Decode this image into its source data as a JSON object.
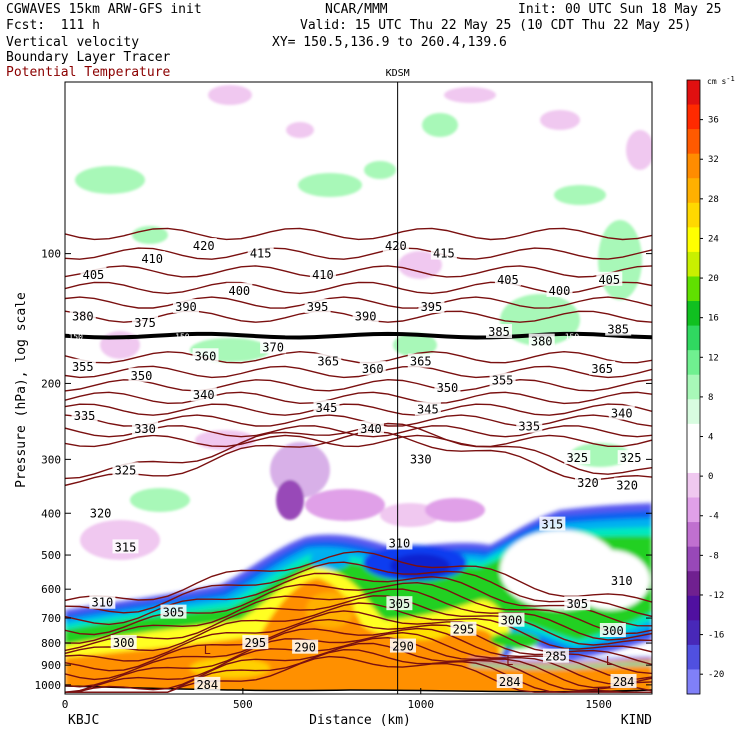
{
  "header": {
    "model": "CGWAVES 15km ARW-GFS init",
    "org": "NCAR/MMM",
    "init": "Init: 00 UTC Sun 18 May 25",
    "fcst": "Fcst:  111 h",
    "valid": "Valid: 15 UTC Thu 22 May 25 (10 CDT Thu 22 May 25)",
    "field1": "Vertical velocity",
    "xy": "XY= 150.5,136.9 to 260.4,139.6",
    "field2": "Boundary Layer Tracer",
    "field3": "Potential Temperature",
    "field3_color": "#8b0000"
  },
  "chart_data": {
    "type": "cross-section",
    "xlabel": "Distance (km)",
    "ylabel": "Pressure (hPa), log scale",
    "xlim": [
      0,
      1650
    ],
    "ylim_hpa": [
      1050,
      40
    ],
    "xticks": [
      0,
      500,
      1000,
      1500
    ],
    "yticks": [
      100,
      200,
      300,
      400,
      500,
      600,
      700,
      800,
      900,
      1000
    ],
    "left_endpoint": "KBJC",
    "right_endpoint": "KIND",
    "marker": {
      "label": "KDSM",
      "x_km": 935
    },
    "colorbar": {
      "unit_label": "cm s",
      "unit_exp": "-1",
      "ticks": [
        36,
        32,
        28,
        24,
        20,
        16,
        12,
        8,
        4,
        0,
        -4,
        -8,
        -12,
        -16,
        -20
      ],
      "colors": [
        "#e01010",
        "#ff2a00",
        "#ff5a00",
        "#ff8c00",
        "#ffb000",
        "#ffd800",
        "#ffff00",
        "#c8f000",
        "#60e000",
        "#10c020",
        "#30d860",
        "#70f090",
        "#a8f8b8",
        "#d8fce0",
        "#ffffff",
        "#ffffff",
        "#f0c8f0",
        "#e0a0e8",
        "#c070d0",
        "#9848b8",
        "#702090",
        "#5010a0",
        "#4828b8",
        "#5050e0",
        "#8080f8"
      ]
    },
    "theta_contour_labels": [
      {
        "v": 405,
        "x": 80,
        "p": 112
      },
      {
        "v": 410,
        "x": 245,
        "p": 103
      },
      {
        "v": 420,
        "x": 390,
        "p": 96
      },
      {
        "v": 415,
        "x": 550,
        "p": 100
      },
      {
        "v": 420,
        "x": 930,
        "p": 96
      },
      {
        "v": 415,
        "x": 1065,
        "p": 100
      },
      {
        "v": 405,
        "x": 1245,
        "p": 115
      },
      {
        "v": 400,
        "x": 1390,
        "p": 122
      },
      {
        "v": 405,
        "x": 1530,
        "p": 115
      },
      {
        "v": 410,
        "x": 725,
        "p": 112
      },
      {
        "v": 400,
        "x": 490,
        "p": 122
      },
      {
        "v": 395,
        "x": 710,
        "p": 133
      },
      {
        "v": 390,
        "x": 845,
        "p": 140
      },
      {
        "v": 395,
        "x": 1030,
        "p": 133
      },
      {
        "v": 380,
        "x": 50,
        "p": 140
      },
      {
        "v": 375,
        "x": 225,
        "p": 145
      },
      {
        "v": 390,
        "x": 340,
        "p": 133
      },
      {
        "v": 385,
        "x": 1220,
        "p": 152
      },
      {
        "v": 380,
        "x": 1340,
        "p": 160
      },
      {
        "v": 385,
        "x": 1555,
        "p": 150
      },
      {
        "v": 370,
        "x": 585,
        "p": 165
      },
      {
        "v": 360,
        "x": 395,
        "p": 173
      },
      {
        "v": 365,
        "x": 740,
        "p": 178
      },
      {
        "v": 360,
        "x": 865,
        "p": 185
      },
      {
        "v": 365,
        "x": 1000,
        "p": 178
      },
      {
        "v": 365,
        "x": 1510,
        "p": 185
      },
      {
        "v": 355,
        "x": 50,
        "p": 183
      },
      {
        "v": 350,
        "x": 215,
        "p": 192
      },
      {
        "v": 340,
        "x": 390,
        "p": 213
      },
      {
        "v": 345,
        "x": 735,
        "p": 228
      },
      {
        "v": 350,
        "x": 1075,
        "p": 205
      },
      {
        "v": 355,
        "x": 1230,
        "p": 197
      },
      {
        "v": 335,
        "x": 55,
        "p": 238
      },
      {
        "v": 330,
        "x": 225,
        "p": 255
      },
      {
        "v": 340,
        "x": 860,
        "p": 255
      },
      {
        "v": 345,
        "x": 1020,
        "p": 230
      },
      {
        "v": 335,
        "x": 1305,
        "p": 252
      },
      {
        "v": 340,
        "x": 1565,
        "p": 235
      },
      {
        "v": 325,
        "x": 170,
        "p": 318
      },
      {
        "v": 330,
        "x": 1000,
        "p": 300
      },
      {
        "v": 325,
        "x": 1440,
        "p": 298
      },
      {
        "v": 325,
        "x": 1590,
        "p": 298
      },
      {
        "v": 320,
        "x": 100,
        "p": 400
      },
      {
        "v": 320,
        "x": 1470,
        "p": 340
      },
      {
        "v": 320,
        "x": 1580,
        "p": 345
      },
      {
        "v": 315,
        "x": 170,
        "p": 480
      },
      {
        "v": 310,
        "x": 940,
        "p": 470
      },
      {
        "v": 315,
        "x": 1370,
        "p": 425
      },
      {
        "v": 310,
        "x": 1565,
        "p": 575
      },
      {
        "v": 310,
        "x": 105,
        "p": 645
      },
      {
        "v": 305,
        "x": 305,
        "p": 680
      },
      {
        "v": 305,
        "x": 940,
        "p": 650
      },
      {
        "v": 305,
        "x": 1440,
        "p": 650
      },
      {
        "v": 300,
        "x": 165,
        "p": 800
      },
      {
        "v": 295,
        "x": 535,
        "p": 800
      },
      {
        "v": 290,
        "x": 675,
        "p": 820
      },
      {
        "v": 290,
        "x": 950,
        "p": 815
      },
      {
        "v": 295,
        "x": 1120,
        "p": 745
      },
      {
        "v": 300,
        "x": 1255,
        "p": 710
      },
      {
        "v": 300,
        "x": 1540,
        "p": 750
      },
      {
        "v": 285,
        "x": 1380,
        "p": 860
      },
      {
        "v": 284,
        "x": 400,
        "p": 1000
      },
      {
        "v": 284,
        "x": 1250,
        "p": 985
      },
      {
        "v": 284,
        "x": 1570,
        "p": 985
      }
    ],
    "thick_line_labels": [
      {
        "v": 150,
        "x": 30,
        "p": 155
      },
      {
        "v": 150,
        "x": 330,
        "p": 155
      },
      {
        "v": 150,
        "x": 1425,
        "p": 155
      }
    ],
    "lows": [
      {
        "x": 400,
        "p": 830
      },
      {
        "x": 1250,
        "p": 880
      },
      {
        "x": 1530,
        "p": 880
      }
    ]
  }
}
